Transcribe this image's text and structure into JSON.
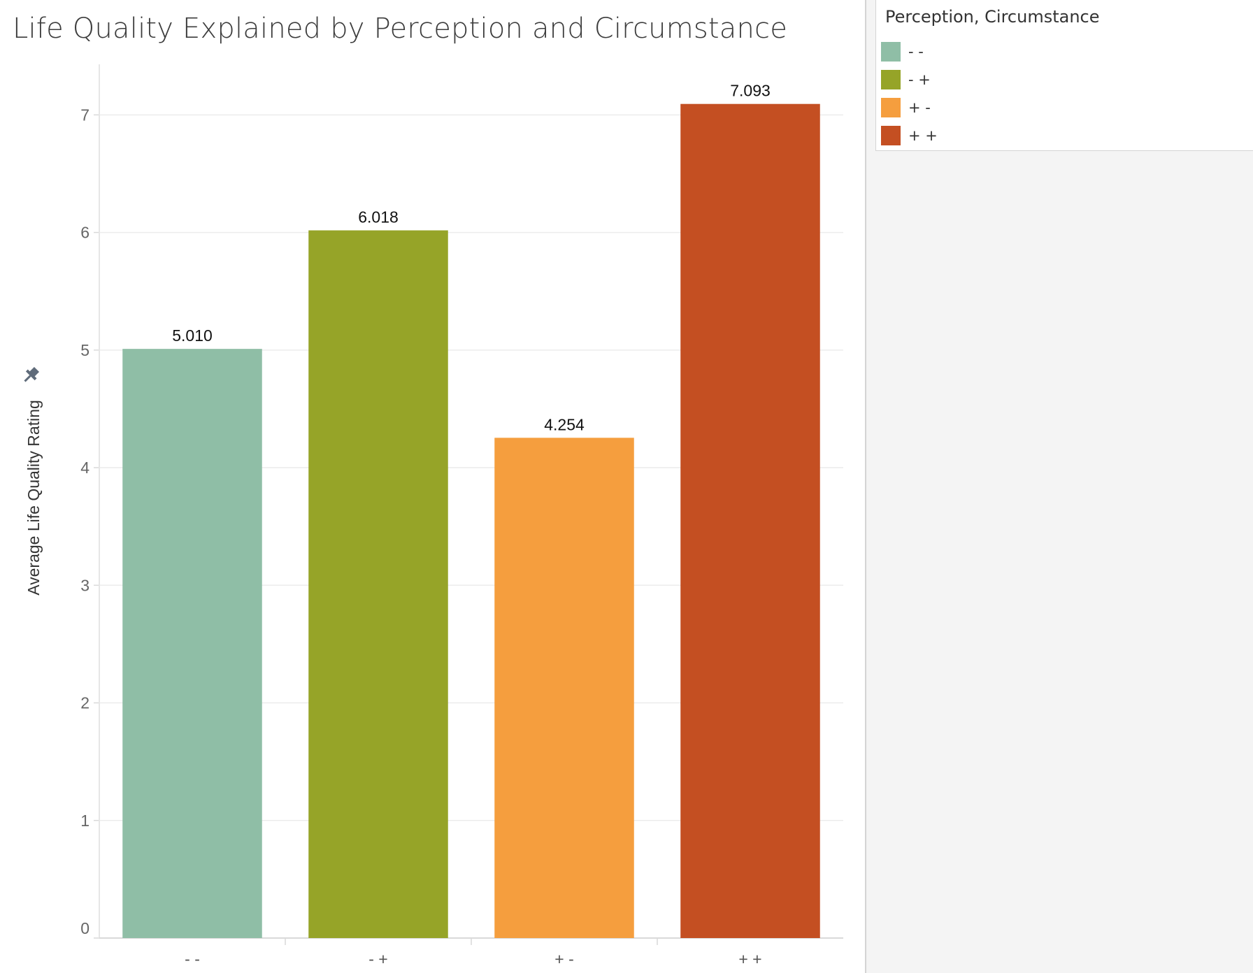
{
  "chart_data": {
    "type": "bar",
    "title": "Life Quality Explained by Perception and Circumstance",
    "ylabel": "Average Life Quality Rating",
    "xlabel": "",
    "categories": [
      "- -",
      "- +",
      "+ -",
      "+ +"
    ],
    "values": [
      5.01,
      6.018,
      4.254,
      7.093
    ],
    "value_labels": [
      "5.010",
      "6.018",
      "4.254",
      "7.093"
    ],
    "colors": [
      "#8fbea6",
      "#96a428",
      "#f59e3e",
      "#c44f22"
    ],
    "ylim": [
      0,
      7.43
    ],
    "yticks": [
      0,
      1,
      2,
      3,
      4,
      5,
      6,
      7
    ],
    "grid": true,
    "legend": {
      "title": "Perception, Circumstance",
      "position": "top-right",
      "items": [
        "- -",
        "- +",
        "+ -",
        "+ +"
      ]
    }
  }
}
